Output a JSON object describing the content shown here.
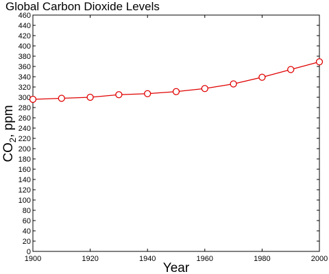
{
  "chart_data": {
    "type": "line",
    "title": "Global Carbon Dioxide Levels",
    "xlabel": "Year",
    "ylabel": "CO",
    "ylabel_subscript": "2",
    "ylabel_suffix": ", ppm",
    "x": [
      1900,
      1910,
      1920,
      1930,
      1940,
      1950,
      1960,
      1970,
      1980,
      1990,
      2000
    ],
    "series": [
      {
        "values": [
          296,
          298,
          300,
          305,
          307,
          311,
          317,
          326,
          339,
          354,
          369
        ]
      }
    ],
    "xlim": [
      1900,
      2000
    ],
    "ylim": [
      0,
      460
    ],
    "xticks": [
      1900,
      1920,
      1940,
      1960,
      1980,
      2000
    ],
    "yticks": [
      0,
      20,
      40,
      60,
      80,
      100,
      120,
      140,
      160,
      180,
      200,
      220,
      240,
      260,
      280,
      300,
      320,
      340,
      360,
      380,
      400,
      420,
      440,
      460
    ],
    "grid": false,
    "color": "#e00000",
    "marker": "circle-open"
  }
}
